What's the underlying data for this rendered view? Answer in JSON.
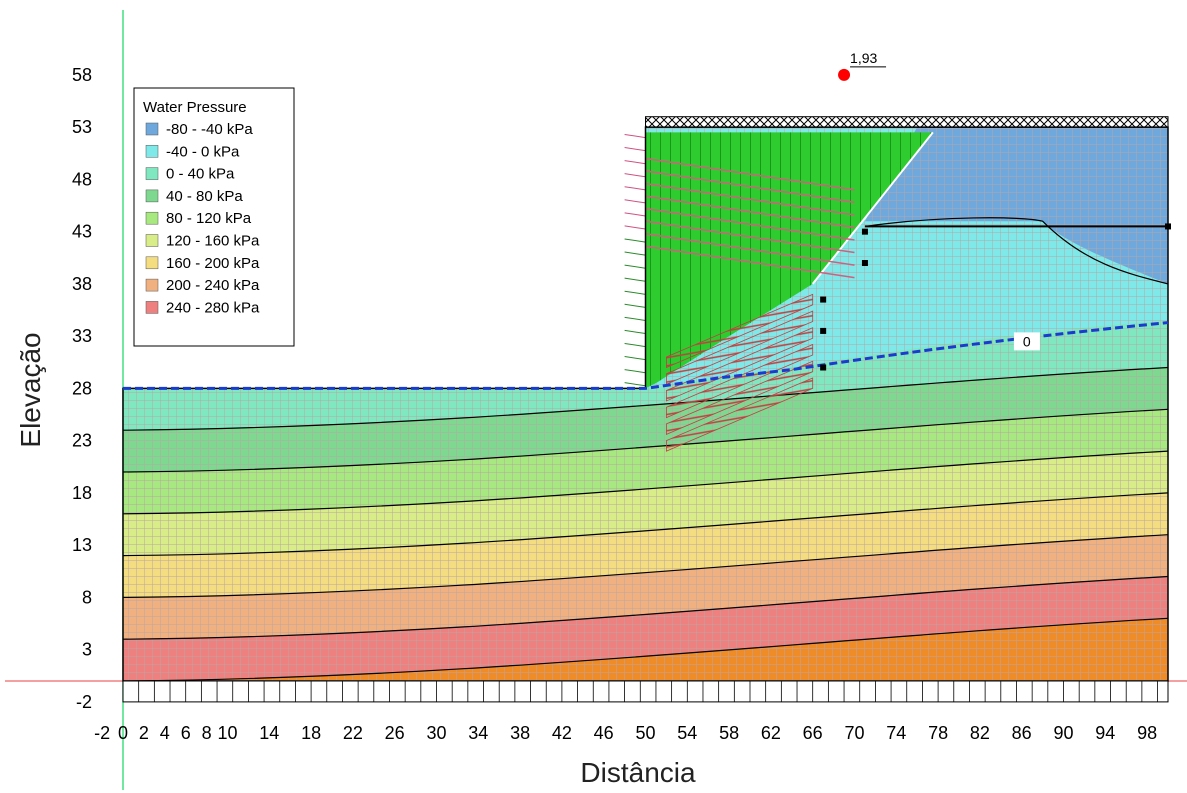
{
  "chart_data": {
    "type": "contour",
    "title": "",
    "xlabel": "Distância",
    "ylabel": "Elevação",
    "xlim": [
      -2,
      100
    ],
    "ylim": [
      -2,
      58
    ],
    "x_ticks": [
      "-2",
      "0",
      "2",
      "4",
      "6",
      "8",
      "10",
      "14",
      "18",
      "22",
      "26",
      "30",
      "34",
      "38",
      "42",
      "46",
      "50",
      "54",
      "58",
      "62",
      "66",
      "70",
      "74",
      "78",
      "82",
      "86",
      "90",
      "94",
      "98"
    ],
    "y_ticks": [
      "-2",
      "3",
      "8",
      "13",
      "18",
      "23",
      "28",
      "33",
      "38",
      "43",
      "48",
      "53",
      "58"
    ],
    "legend": {
      "title": "Water Pressure",
      "items": [
        {
          "label": "-80 - -40 kPa",
          "color": "#6fa8dc"
        },
        {
          "label": "-40 - 0 kPa",
          "color": "#7fe8e8"
        },
        {
          "label": "0 - 40 kPa",
          "color": "#7fe8c0"
        },
        {
          "label": "40 - 80 kPa",
          "color": "#7fd890"
        },
        {
          "label": "80 - 120 kPa",
          "color": "#a8e880"
        },
        {
          "label": "120 - 160 kPa",
          "color": "#d8ec88"
        },
        {
          "label": "160 - 200 kPa",
          "color": "#f4dc80"
        },
        {
          "label": "200 - 240 kPa",
          "color": "#f0b080"
        },
        {
          "label": "240 - 280 kPa",
          "color": "#ee8080"
        }
      ]
    },
    "extra_zone_color": "#f08c28",
    "slip_zone_color": "#2ecc2e",
    "factor_of_safety": {
      "label": "1,93",
      "x": 69,
      "y": 58
    },
    "water_table_label": "0",
    "domain_outline": [
      [
        0,
        0
      ],
      [
        0,
        28
      ],
      [
        50,
        28
      ],
      [
        50,
        53
      ],
      [
        100,
        53
      ],
      [
        100,
        0
      ]
    ]
  }
}
